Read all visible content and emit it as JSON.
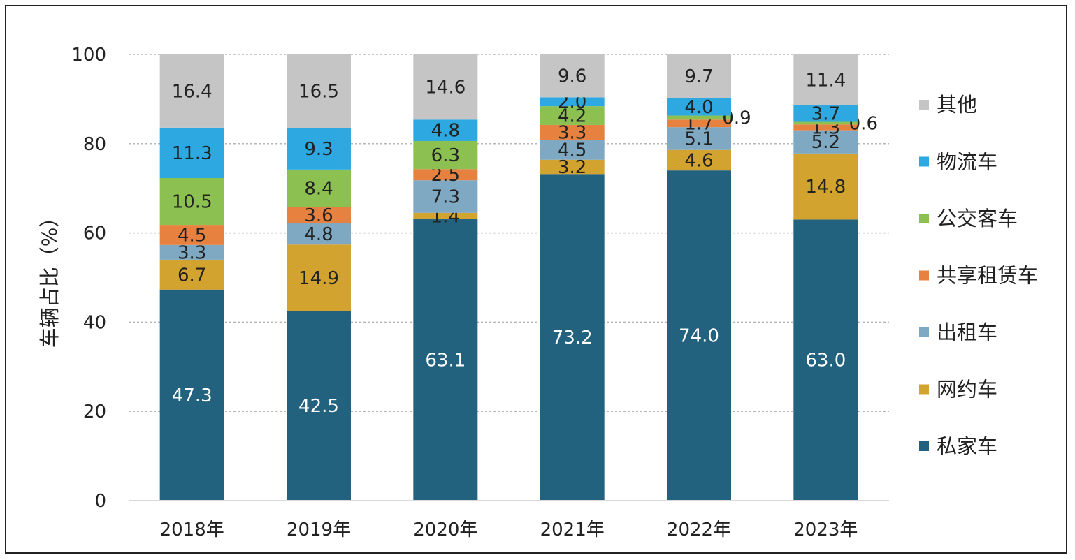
{
  "chart_data": {
    "type": "bar",
    "stacked": true,
    "ylabel": "车辆占比（%）",
    "ylim": [
      0,
      100
    ],
    "yticks": [
      0,
      20,
      40,
      60,
      80,
      100
    ],
    "grid": true,
    "legend_position": "right",
    "categories": [
      "2018年",
      "2019年",
      "2020年",
      "2021年",
      "2022年",
      "2023年"
    ],
    "series": [
      {
        "name": "私家车",
        "color": "#22627f",
        "values": [
          47.3,
          42.5,
          63.1,
          73.2,
          74.0,
          63.0
        ],
        "labels": [
          "47.3",
          "42.5",
          "63.1",
          "73.2",
          "74.0",
          "63.0"
        ],
        "label_color": "#ffffff"
      },
      {
        "name": "网约车",
        "color": "#d3a32f",
        "values": [
          6.7,
          14.9,
          1.4,
          3.2,
          4.6,
          14.8
        ],
        "labels": [
          "6.7",
          "14.9",
          "1.4",
          "3.2",
          "4.6",
          "14.8"
        ],
        "label_color": "#222222"
      },
      {
        "name": "出租车",
        "color": "#7fa9c3",
        "values": [
          3.3,
          4.8,
          7.3,
          4.5,
          5.1,
          5.2
        ],
        "labels": [
          "3.3",
          "4.8",
          "7.3",
          "4.5",
          "5.1",
          "5.2"
        ],
        "label_color": "#222222"
      },
      {
        "name": "共享租赁车",
        "color": "#e7813f",
        "values": [
          4.5,
          3.6,
          2.5,
          3.3,
          1.7,
          1.3
        ],
        "labels": [
          "4.5",
          "3.6",
          "2.5",
          "3.3",
          "1.7",
          "1.3"
        ],
        "label_color": "#222222"
      },
      {
        "name": "公交客车",
        "color": "#8cc152",
        "values": [
          10.5,
          8.4,
          6.3,
          4.2,
          0.9,
          0.6
        ],
        "labels": [
          "10.5",
          "8.4",
          "6.3",
          "4.2",
          "0.9",
          "0.6"
        ],
        "label_color": "#222222"
      },
      {
        "name": "物流车",
        "color": "#2ea8e0",
        "values": [
          11.3,
          9.3,
          4.8,
          2.0,
          4.0,
          3.7
        ],
        "labels": [
          "11.3",
          "9.3",
          "4.8",
          "2.0",
          "4.0",
          "3.7"
        ],
        "label_color": "#222222"
      },
      {
        "name": "其他",
        "color": "#c5c5c5",
        "values": [
          16.4,
          16.5,
          14.6,
          9.6,
          9.7,
          11.4
        ],
        "labels": [
          "16.4",
          "16.5",
          "14.6",
          "9.6",
          "9.7",
          "11.4"
        ],
        "label_color": "#222222"
      }
    ]
  }
}
